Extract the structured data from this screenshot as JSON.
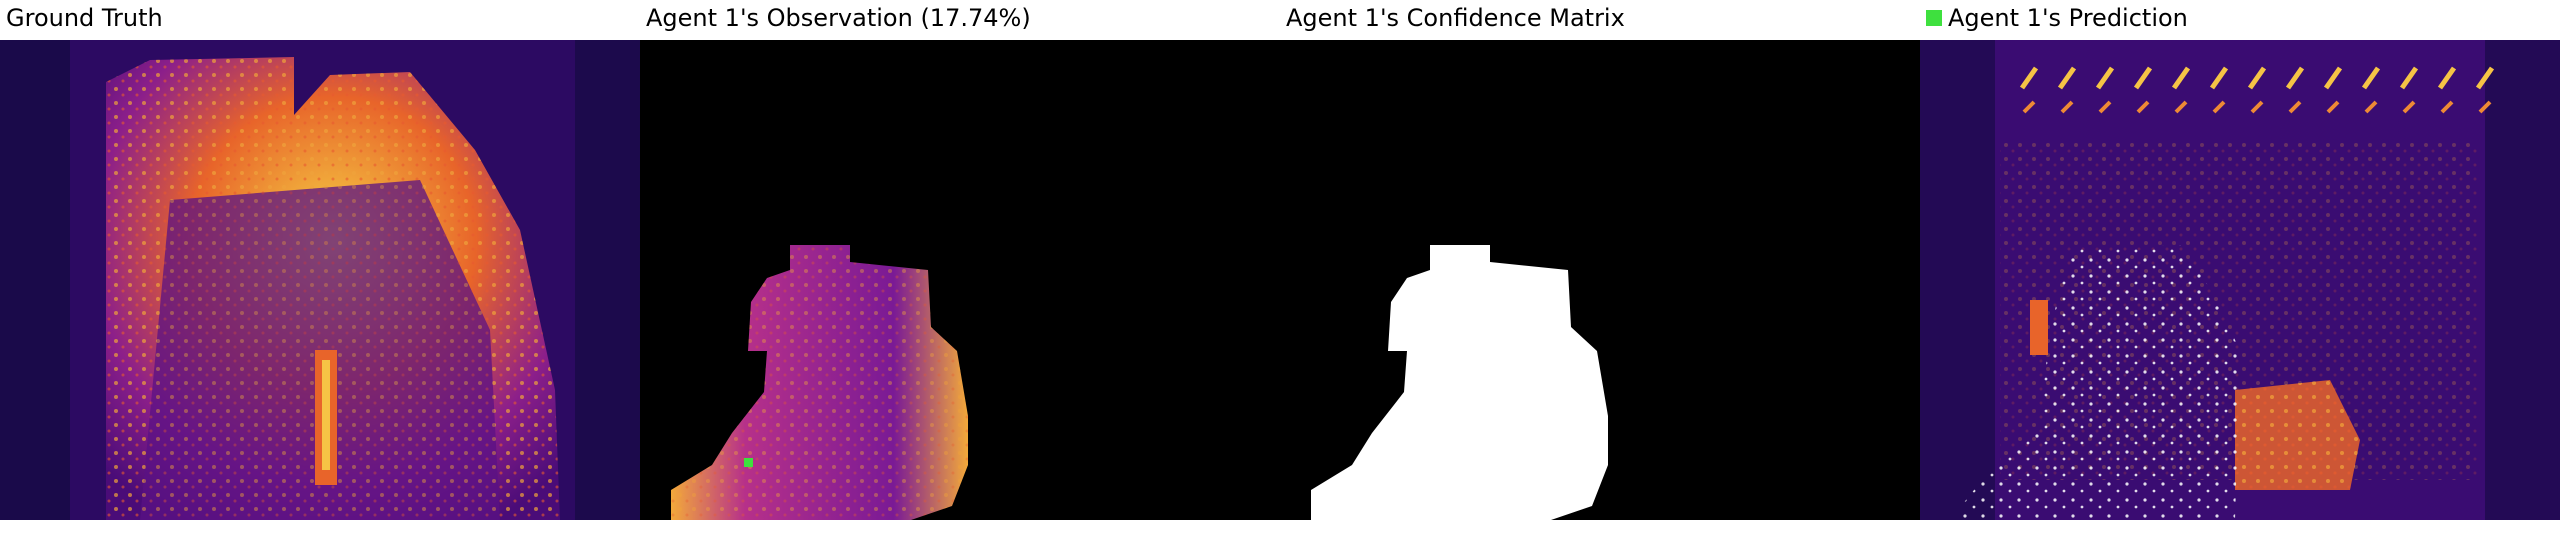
{
  "panels": [
    {
      "title": "Ground Truth"
    },
    {
      "title": "Agent 1's Observation (17.74%)"
    },
    {
      "title": "Agent 1's Confidence Matrix"
    },
    {
      "title": "Agent 1's Prediction"
    }
  ]
}
